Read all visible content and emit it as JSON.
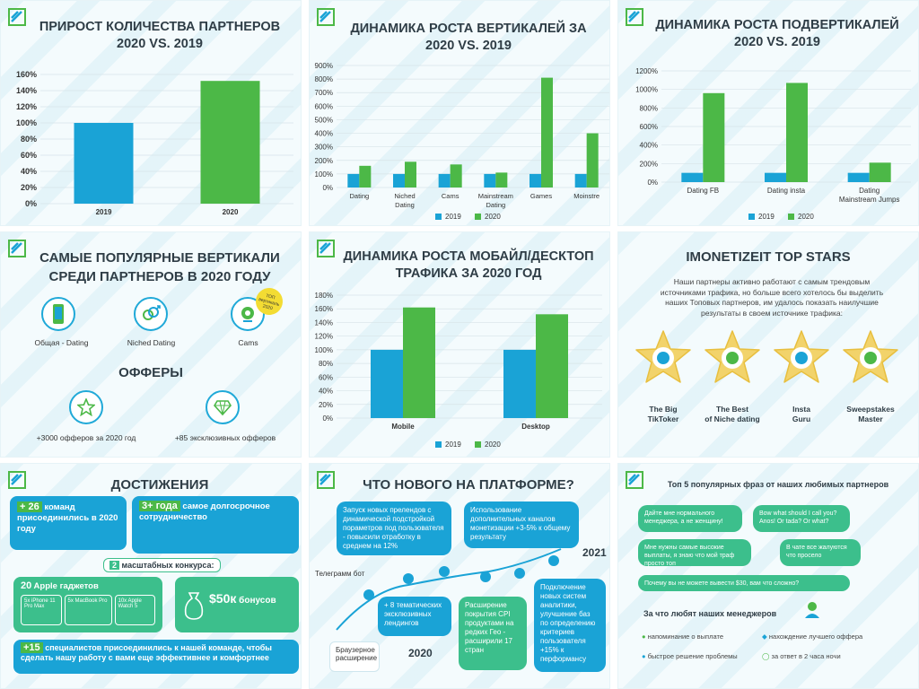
{
  "colors": {
    "blue": "#1aa3d6",
    "green": "#4cb847",
    "teal": "#3cbf8c",
    "title": "#2f3d46"
  },
  "p1": {
    "title": "ПРИРОСТ КОЛИЧЕСТВА ПАРТНЕРОВ 2020 VS. 2019",
    "chart_data": {
      "type": "bar",
      "categories": [
        "2019",
        "2020"
      ],
      "values": [
        100,
        152
      ],
      "ylim": [
        0,
        160
      ],
      "yticks": [
        "0%",
        "20%",
        "40%",
        "60%",
        "80%",
        "100%",
        "120%",
        "140%",
        "160%"
      ],
      "colors": [
        "#1aa3d6",
        "#4cb847"
      ]
    }
  },
  "p2": {
    "title": "ДИНАМИКА РОСТА ВЕРТИКАЛЕЙ ЗА 2020 VS. 2019",
    "chart_data": {
      "type": "bar",
      "categories": [
        "Dating",
        "Niched Dating",
        "Cams",
        "Mainstream Dating",
        "Games",
        "Moinstre"
      ],
      "series": [
        {
          "name": "2019",
          "values": [
            100,
            100,
            100,
            100,
            100,
            100
          ]
        },
        {
          "name": "2020",
          "values": [
            160,
            190,
            170,
            110,
            810,
            400
          ]
        }
      ],
      "ylim": [
        0,
        900
      ],
      "yticks": [
        "0%",
        "100%",
        "200%",
        "300%",
        "400%",
        "500%",
        "600%",
        "700%",
        "800%",
        "900%"
      ]
    }
  },
  "p3": {
    "title": "ДИНАМИКА РОСТА ПОДВЕРТИКАЛЕЙ 2020 VS. 2019",
    "chart_data": {
      "type": "bar",
      "categories": [
        "Dating FB",
        "Dating insta",
        "Dating Mainstream Jumps"
      ],
      "series": [
        {
          "name": "2019",
          "values": [
            100,
            100,
            100
          ]
        },
        {
          "name": "2020",
          "values": [
            960,
            1070,
            210
          ]
        }
      ],
      "ylim": [
        0,
        1200
      ],
      "yticks": [
        "0%",
        "200%",
        "400%",
        "600%",
        "800%",
        "1000%",
        "1200%"
      ]
    }
  },
  "p4": {
    "title": "САМЫЕ ПОПУЛЯРНЫЕ ВЕРТИКАЛИ СРЕДИ ПАРТНЕРОВ В 2020 ГОДУ",
    "verticals": [
      "Общая - Dating",
      "Niched Dating",
      "Cams"
    ],
    "badge": "ТОП вертикаль 2020",
    "offers_title": "ОФФЕРЫ",
    "offers": [
      "+3000 офферов за 2020 год",
      "+85 эксклюзивных офферов"
    ]
  },
  "p5": {
    "title": "ДИНАМИКА РОСТА МОБАЙЛ/ДЕСКТОП ТРАФИКА ЗА 2020 ГОД",
    "chart_data": {
      "type": "bar",
      "categories": [
        "Mobile",
        "Desktop"
      ],
      "series": [
        {
          "name": "2019",
          "values": [
            100,
            100
          ]
        },
        {
          "name": "2020",
          "values": [
            162,
            152
          ]
        }
      ],
      "ylim": [
        0,
        180
      ],
      "yticks": [
        "0%",
        "20%",
        "40%",
        "60%",
        "80%",
        "100%",
        "120%",
        "140%",
        "160%",
        "180%"
      ]
    }
  },
  "p6": {
    "title": "IMONETIZEIT TOP STARS",
    "text": "Наши партнеры активно работают с самым трендовым источниками трафика, но больше всего хотелось бы выделить наших Топовых партнеров, им удалось показать наилучшие результаты в своем источнике трафика:",
    "stars": [
      {
        "l1": "The Big",
        "l2": "TikToker"
      },
      {
        "l1": "The Best",
        "l2": "of Niche dating"
      },
      {
        "l1": "Insta",
        "l2": "Guru"
      },
      {
        "l1": "Sweepstakes",
        "l2": "Master"
      }
    ]
  },
  "p7": {
    "title": "ДОСТИЖЕНИЯ",
    "b1_hi": "+ 26",
    "b1_text": "команд присоединились в 2020 году",
    "b2_hi": "3+ года",
    "b2_text": "самое долгосрочное сотрудничество",
    "b3_hi": "2",
    "b3_text": "масштабных конкурса:",
    "b4_hi": "20",
    "b4_text": "Apple гаджетов",
    "gadgets": [
      "5x iPhone 11 Pro Max",
      "5x MacBook Pro",
      "10x Apple Watch 5"
    ],
    "b5_hi": "$50к",
    "b5_text": "бонусов",
    "b6_hi": "+15",
    "b6_text": "специалистов присоединились к нашей команде, чтобы сделать нашу работу с вами еще эффективнее и комфортнее"
  },
  "p8": {
    "title": "ЧТО НОВОГО НА ПЛАТФОРМЕ?",
    "y2020": "2020",
    "y2021": "2021",
    "tg": "Телеграмм бот",
    "c1": "Запуск новых прелендов с динамической подстройкой пораметров под пользователя - повысили отработку в среднем на 12%",
    "c2": "Использование дополнительных каналов монетизации +3-5% к общему результату",
    "c3": "+ 8 тематических эксклюзивных лендингов",
    "c4": "Расширение покрытия CPI продуктами на редких Гео - расширили 17 стран",
    "c5": "Подключение новых систем аналитики, улучшение баз по определению критериев пользователя +15% к перформансу",
    "c6": "Браузерное расширение"
  },
  "p9": {
    "title": "Топ 5 популярных фраз от наших любимых партнеров",
    "q": [
      "Дайте мне нормального менеджера, а не женщину!",
      "Bow what should I call you? Anos! Or tada? Or what?",
      "Мне нужны самые высокие выплаты, я знаю что мой траф просто топ",
      "В чате все жалуются что просело",
      "Почему вы не можете вывести $30, вам что сложно?"
    ],
    "sub": "За что любят наших менеджеров",
    "reasons": [
      "напоминание о выплате",
      "нахождение лучшего оффера",
      "быстрое решение проблемы",
      "за ответ в 2 часа ночи"
    ]
  }
}
